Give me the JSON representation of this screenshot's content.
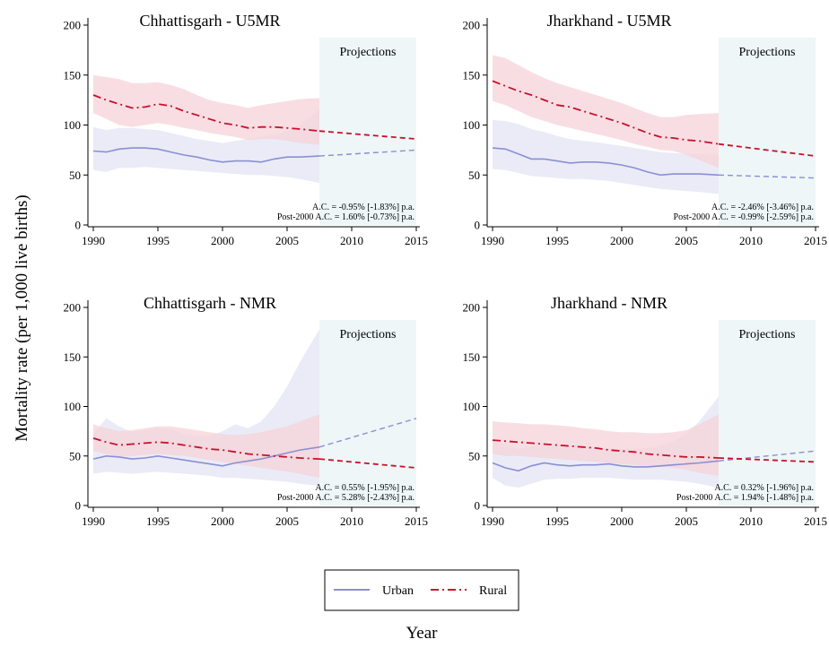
{
  "colors": {
    "urban": "#8b8fd2",
    "urban_band": "#e6e7f6",
    "rural": "#c8102e",
    "rural_band": "#f6d3d8",
    "projection_bg": "#eef6f7"
  },
  "axes": {
    "ylabel": "Mortality rate (per 1,000 live births)",
    "xlabel": "Year",
    "y_ticks": [
      0,
      50,
      100,
      150,
      200
    ],
    "x_ticks": [
      1990,
      1995,
      2000,
      2005,
      2010,
      2015
    ],
    "xlim": [
      1990,
      2015
    ],
    "ylim": [
      0,
      200
    ]
  },
  "legend": {
    "urban": "Urban",
    "rural": "Rural"
  },
  "projection_label": "Projections",
  "chart_data": [
    {
      "type": "line",
      "title": "Chhattisgarh - U5MR",
      "projection_start": 2007.5,
      "annotations": [
        "A.C. = -0.95% [-1.83%] p.a.",
        "Post-2000 A.C. = 1.60% [-0.73%] p.a."
      ],
      "series": [
        {
          "name": "Urban",
          "x": [
            1990,
            1991,
            1992,
            1993,
            1994,
            1995,
            1996,
            1997,
            1998,
            1999,
            2000,
            2001,
            2002,
            2003,
            2004,
            2005,
            2006,
            2007.5
          ],
          "y": [
            74,
            73,
            76,
            77,
            77,
            76,
            73,
            70,
            68,
            65,
            63,
            64,
            64,
            63,
            66,
            68,
            68,
            69
          ],
          "lower": [
            55,
            53,
            57,
            57,
            58,
            57,
            56,
            55,
            54,
            53,
            52,
            51,
            50,
            50,
            49,
            48,
            46,
            42
          ],
          "upper": [
            98,
            95,
            97,
            97,
            96,
            95,
            92,
            89,
            86,
            84,
            82,
            84,
            86,
            88,
            90,
            94,
            100,
            115
          ],
          "proj_x": [
            2007.5,
            2015
          ],
          "proj_y": [
            69,
            75
          ]
        },
        {
          "name": "Rural",
          "x": [
            1990,
            1991,
            1992,
            1993,
            1994,
            1995,
            1996,
            1997,
            1998,
            1999,
            2000,
            2001,
            2002,
            2003,
            2004,
            2005,
            2006,
            2007.5
          ],
          "y": [
            130,
            125,
            121,
            117,
            118,
            121,
            119,
            114,
            110,
            106,
            102,
            100,
            97,
            98,
            98,
            97,
            96,
            94
          ],
          "lower": [
            112,
            106,
            100,
            98,
            100,
            102,
            100,
            97,
            95,
            92,
            90,
            88,
            85,
            86,
            86,
            84,
            82,
            80
          ],
          "upper": [
            150,
            148,
            146,
            142,
            142,
            143,
            140,
            136,
            130,
            125,
            122,
            120,
            117,
            120,
            122,
            124,
            126,
            127
          ],
          "proj_x": [
            2007.5,
            2015
          ],
          "proj_y": [
            94,
            86
          ]
        }
      ]
    },
    {
      "type": "line",
      "title": "Jharkhand - U5MR",
      "projection_start": 2007.5,
      "annotations": [
        "A.C. = -2.46% [-3.46%] p.a.",
        "Post-2000 A.C. = -0.99% [-2.59%] p.a."
      ],
      "series": [
        {
          "name": "Urban",
          "x": [
            1990,
            1991,
            1992,
            1993,
            1994,
            1995,
            1996,
            1997,
            1998,
            1999,
            2000,
            2001,
            2002,
            2003,
            2004,
            2005,
            2006,
            2007.5
          ],
          "y": [
            77,
            76,
            71,
            66,
            66,
            64,
            62,
            63,
            63,
            62,
            60,
            57,
            53,
            50,
            51,
            51,
            51,
            50
          ],
          "lower": [
            56,
            55,
            52,
            49,
            48,
            47,
            46,
            46,
            45,
            44,
            42,
            40,
            38,
            36,
            35,
            34,
            33,
            31
          ],
          "upper": [
            105,
            104,
            101,
            96,
            93,
            89,
            86,
            84,
            83,
            81,
            79,
            77,
            75,
            73,
            72,
            71,
            71,
            70
          ],
          "proj_x": [
            2007.5,
            2015
          ],
          "proj_y": [
            50,
            47
          ]
        },
        {
          "name": "Rural",
          "x": [
            1990,
            1991,
            1992,
            1993,
            1994,
            1995,
            1996,
            1997,
            1998,
            1999,
            2000,
            2001,
            2002,
            2003,
            2004,
            2005,
            2006,
            2007.5
          ],
          "y": [
            144,
            139,
            134,
            130,
            125,
            120,
            118,
            114,
            110,
            106,
            102,
            97,
            92,
            88,
            87,
            85,
            84,
            81
          ],
          "lower": [
            124,
            120,
            114,
            108,
            104,
            100,
            97,
            94,
            91,
            88,
            85,
            81,
            78,
            75,
            74,
            70,
            65,
            57
          ],
          "upper": [
            170,
            167,
            160,
            153,
            147,
            142,
            138,
            134,
            130,
            126,
            122,
            117,
            112,
            108,
            108,
            110,
            111,
            112
          ],
          "proj_x": [
            2007.5,
            2015
          ],
          "proj_y": [
            81,
            69
          ]
        }
      ]
    },
    {
      "type": "line",
      "title": "Chhattisgarh - NMR",
      "projection_start": 2007.5,
      "annotations": [
        "A.C. = 0.55% [-1.95%] p.a.",
        "Post-2000 A.C. = 5.28% [-2.43%] p.a."
      ],
      "series": [
        {
          "name": "Urban",
          "x": [
            1990,
            1991,
            1992,
            1993,
            1994,
            1995,
            1996,
            1997,
            1998,
            1999,
            2000,
            2001,
            2002,
            2003,
            2004,
            2005,
            2006,
            2007.5
          ],
          "y": [
            47,
            50,
            49,
            47,
            48,
            50,
            48,
            46,
            44,
            42,
            40,
            43,
            45,
            47,
            50,
            53,
            56,
            59
          ],
          "lower": [
            32,
            34,
            33,
            32,
            33,
            34,
            33,
            32,
            31,
            30,
            28,
            28,
            27,
            26,
            25,
            24,
            22,
            20
          ],
          "upper": [
            72,
            88,
            80,
            74,
            76,
            78,
            77,
            72,
            70,
            70,
            75,
            82,
            78,
            85,
            100,
            120,
            145,
            178
          ],
          "proj_x": [
            2007.5,
            2015
          ],
          "proj_y": [
            59,
            88
          ]
        },
        {
          "name": "Rural",
          "x": [
            1990,
            1991,
            1992,
            1993,
            1994,
            1995,
            1996,
            1997,
            1998,
            1999,
            2000,
            2001,
            2002,
            2003,
            2004,
            2005,
            2006,
            2007.5
          ],
          "y": [
            68,
            64,
            61,
            62,
            63,
            64,
            63,
            61,
            59,
            57,
            56,
            54,
            52,
            51,
            50,
            49,
            48,
            47
          ],
          "lower": [
            55,
            52,
            49,
            50,
            51,
            52,
            51,
            50,
            48,
            46,
            44,
            42,
            40,
            38,
            36,
            34,
            32,
            28
          ],
          "upper": [
            82,
            78,
            75,
            76,
            78,
            80,
            80,
            78,
            76,
            74,
            72,
            71,
            72,
            74,
            77,
            80,
            85,
            92
          ],
          "proj_x": [
            2007.5,
            2015
          ],
          "proj_y": [
            47,
            38
          ]
        }
      ]
    },
    {
      "type": "line",
      "title": "Jharkhand - NMR",
      "projection_start": 2007.5,
      "annotations": [
        "A.C. = 0.32% [-1.96%] p.a.",
        "Post-2000 A.C. = 1.94% [-1.48%] p.a."
      ],
      "series": [
        {
          "name": "Urban",
          "x": [
            1990,
            1991,
            1992,
            1993,
            1994,
            1995,
            1996,
            1997,
            1998,
            1999,
            2000,
            2001,
            2002,
            2003,
            2004,
            2005,
            2006,
            2007.5
          ],
          "y": [
            43,
            38,
            35,
            40,
            43,
            41,
            40,
            41,
            41,
            42,
            40,
            39,
            39,
            40,
            41,
            42,
            43,
            45
          ],
          "lower": [
            28,
            20,
            18,
            22,
            26,
            27,
            27,
            28,
            28,
            28,
            27,
            26,
            26,
            26,
            25,
            24,
            22,
            18
          ],
          "upper": [
            65,
            62,
            57,
            60,
            62,
            60,
            58,
            58,
            58,
            58,
            57,
            57,
            58,
            60,
            65,
            72,
            85,
            110
          ],
          "proj_x": [
            2007.5,
            2015
          ],
          "proj_y": [
            45,
            55
          ]
        },
        {
          "name": "Rural",
          "x": [
            1990,
            1991,
            1992,
            1993,
            1994,
            1995,
            1996,
            1997,
            1998,
            1999,
            2000,
            2001,
            2002,
            2003,
            2004,
            2005,
            2006,
            2007.5
          ],
          "y": [
            66,
            65,
            64,
            63,
            62,
            61,
            60,
            59,
            58,
            56,
            55,
            54,
            52,
            51,
            50,
            49,
            49,
            48
          ],
          "lower": [
            52,
            50,
            50,
            49,
            48,
            47,
            46,
            45,
            44,
            43,
            42,
            41,
            40,
            39,
            38,
            36,
            33,
            30
          ],
          "upper": [
            85,
            84,
            83,
            82,
            82,
            81,
            80,
            78,
            77,
            75,
            74,
            74,
            73,
            73,
            74,
            76,
            82,
            92
          ],
          "proj_x": [
            2007.5,
            2015
          ],
          "proj_y": [
            48,
            44
          ]
        }
      ]
    }
  ]
}
